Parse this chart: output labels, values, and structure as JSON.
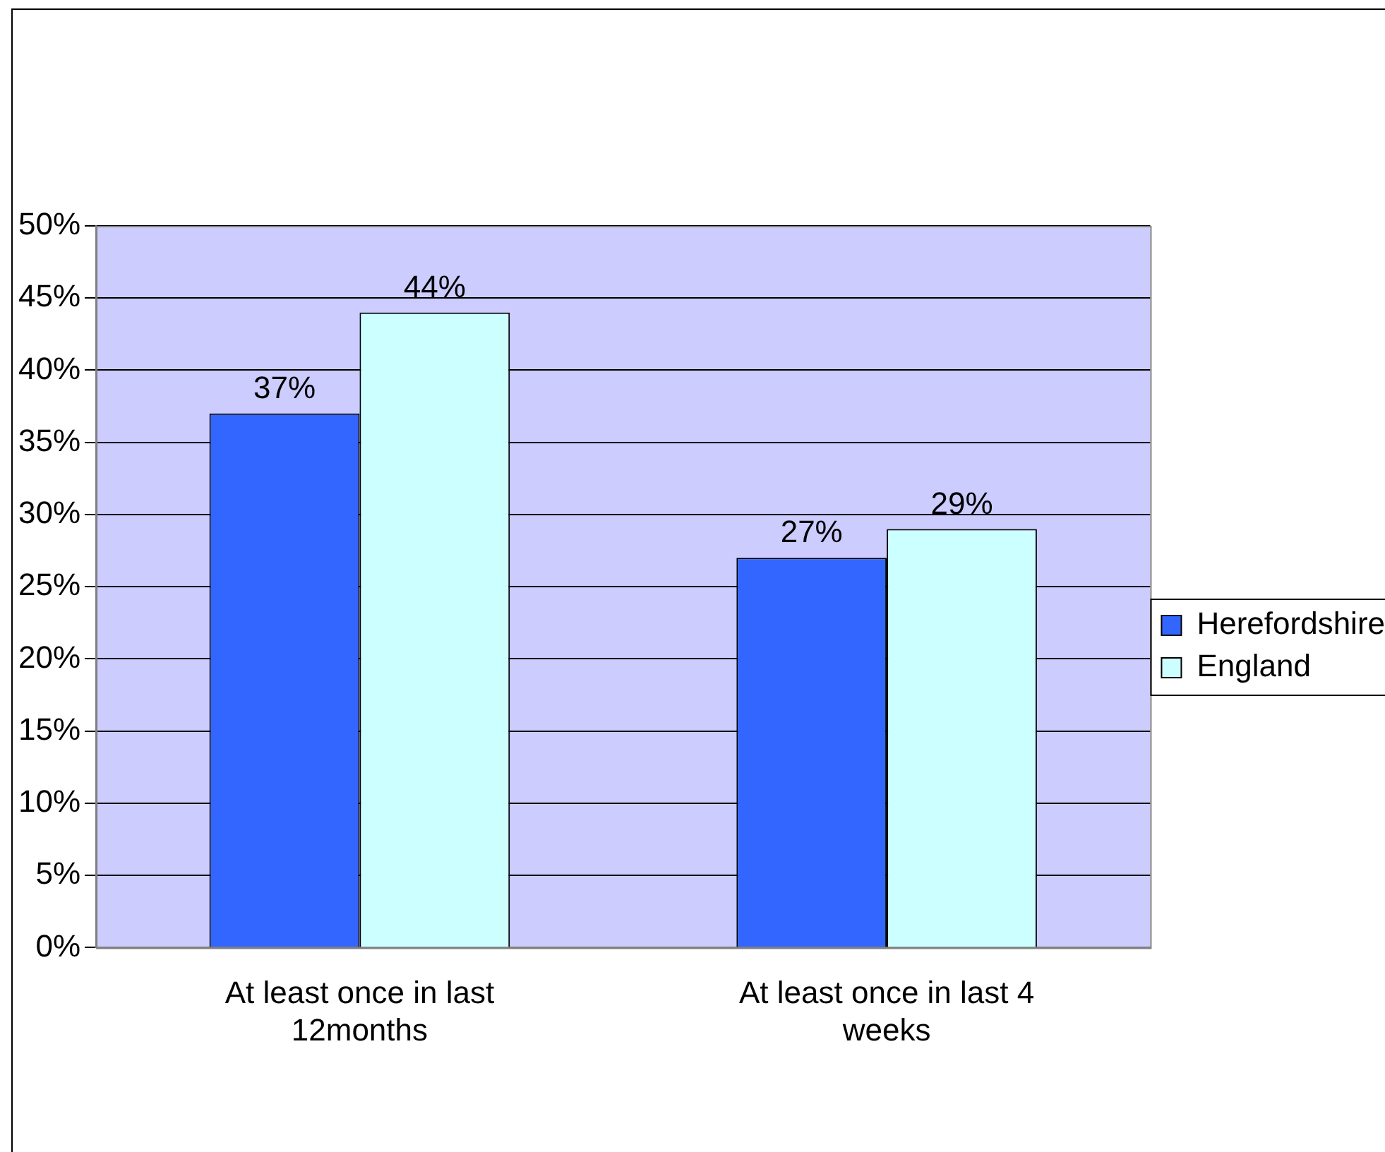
{
  "chart_data": {
    "type": "bar",
    "categories": [
      "At least once in last 12months",
      "At least once in last 4 weeks"
    ],
    "series": [
      {
        "name": "Herefordshire",
        "color": "#3366ff",
        "values": [
          37,
          27
        ]
      },
      {
        "name": "England",
        "color": "#ccffff",
        "values": [
          44,
          29
        ]
      }
    ],
    "ylim": [
      0,
      50
    ],
    "yticks": [
      {
        "value": 0,
        "label": "0%"
      },
      {
        "value": 5,
        "label": "5%"
      },
      {
        "value": 10,
        "label": "10%"
      },
      {
        "value": 15,
        "label": "15%"
      },
      {
        "value": 20,
        "label": "20%"
      },
      {
        "value": 25,
        "label": "25%"
      },
      {
        "value": 30,
        "label": "30%"
      },
      {
        "value": 35,
        "label": "35%"
      },
      {
        "value": 40,
        "label": "40%"
      },
      {
        "value": 45,
        "label": "45%"
      },
      {
        "value": 50,
        "label": "50%"
      }
    ],
    "grid": "y",
    "legend": "right",
    "value_labels": [
      [
        "37%",
        "27%"
      ],
      [
        "44%",
        "29%"
      ]
    ]
  }
}
